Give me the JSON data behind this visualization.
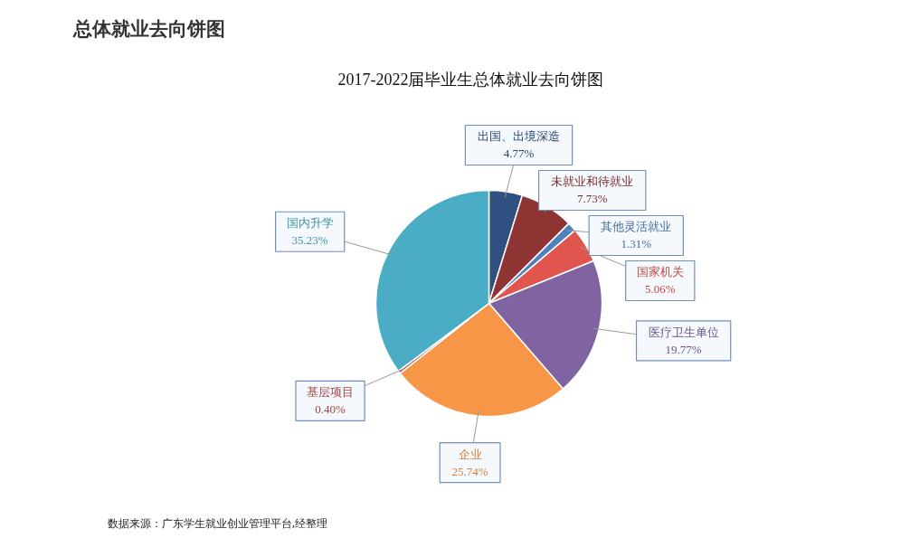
{
  "chart_data": {
    "type": "pie",
    "title": "总体就业去向饼图",
    "subtitle": "2017-2022届毕业生总体就业去向饼图",
    "categories": [
      "出国、出境深造",
      "未就业和待就业",
      "其他灵活就业",
      "国家机关",
      "医疗卫生单位",
      "企业",
      "基层项目",
      "国内升学"
    ],
    "values": [
      4.77,
      7.73,
      1.31,
      5.06,
      19.77,
      25.74,
      0.4,
      35.23
    ],
    "colors": [
      "#2f5080",
      "#8e3533",
      "#4f81bd",
      "#e0564f",
      "#8064a2",
      "#f79646",
      "#c0504d",
      "#4bacc6"
    ],
    "value_labels": [
      "4.77%",
      "7.73%",
      "1.31%",
      "5.06%",
      "19.77%",
      "25.74%",
      "0.40%",
      "35.23%"
    ],
    "annotations": [
      "数据来源：广东学生就业创业管理平台,经整理"
    ]
  }
}
